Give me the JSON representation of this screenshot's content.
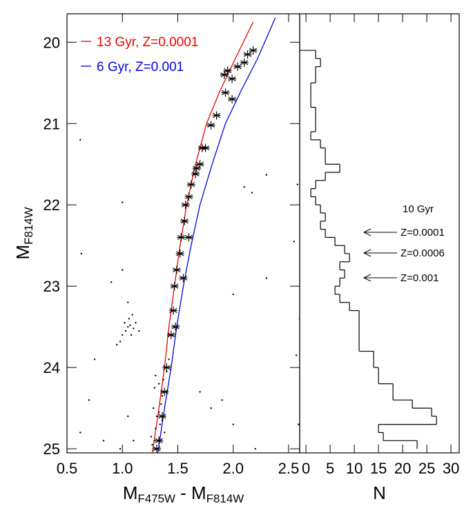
{
  "chart_data": [
    {
      "type": "scatter",
      "x_label": [
        {
          "text": "M"
        },
        {
          "sub": "F475W"
        },
        {
          "text": " - M"
        },
        {
          "sub": "F814W"
        }
      ],
      "y_label": [
        {
          "text": "M"
        },
        {
          "sub": "F814W"
        }
      ],
      "xlim": [
        0.5,
        2.6
      ],
      "ylim": [
        19.65,
        25.05
      ],
      "y_inverted": true,
      "xticks": [
        0.5,
        {
          "value": 1,
          "label": "1.0"
        },
        1.5,
        {
          "value": 2,
          "label": "2.0"
        },
        2.5
      ],
      "yticks": [
        20,
        21,
        22,
        23,
        24,
        25
      ],
      "legend": "upper left",
      "series": [
        {
          "name": "13 Gyr, Z=0.0001",
          "color": "#ee0000",
          "marker": "line",
          "x": [
            1.27,
            1.33,
            1.38,
            1.42,
            1.47,
            1.52,
            1.58,
            1.66,
            1.76,
            1.88,
            2.02,
            2.18
          ],
          "values": [
            25.05,
            24.5,
            24.0,
            23.5,
            23.0,
            22.5,
            22.0,
            21.5,
            21.0,
            20.6,
            20.2,
            19.75
          ]
        },
        {
          "name": "6 Gyr, Z=0.001",
          "color": "#0000dd",
          "marker": "line",
          "x": [
            1.32,
            1.38,
            1.44,
            1.49,
            1.55,
            1.62,
            1.7,
            1.81,
            1.93,
            2.07,
            2.22,
            2.38
          ],
          "values": [
            25.05,
            24.5,
            24.0,
            23.5,
            23.0,
            22.5,
            22.0,
            21.5,
            21.0,
            20.6,
            20.2,
            19.7
          ]
        },
        {
          "color": "#000000",
          "marker": "asterisk",
          "x": [
            2.18,
            2.13,
            2.1,
            2.04,
            1.95,
            1.92,
            1.99,
            1.93,
            1.99,
            1.85,
            1.8,
            1.72,
            1.75,
            1.7,
            1.67,
            1.66,
            1.62,
            1.6,
            1.57,
            1.56,
            1.53,
            1.52,
            1.49,
            1.47,
            1.46,
            1.44,
            1.4,
            1.38,
            1.36,
            1.33,
            1.31,
            1.6,
            1.55,
            1.48
          ],
          "values": [
            20.1,
            20.15,
            20.25,
            20.3,
            20.35,
            20.4,
            20.45,
            20.62,
            20.7,
            20.9,
            21.02,
            21.3,
            21.3,
            21.5,
            21.55,
            21.62,
            21.75,
            21.9,
            22.0,
            22.2,
            22.4,
            22.6,
            22.8,
            23.0,
            23.3,
            23.6,
            24.0,
            24.3,
            24.6,
            24.9,
            25.0,
            22.4,
            22.9,
            23.5
          ]
        },
        {
          "color": "#000000",
          "marker": "dot",
          "x": [
            0.62,
            1.0,
            0.63,
            2.58,
            2.3,
            2.1,
            2.17,
            2.3,
            2.0,
            2.55,
            2.6,
            2.57,
            0.75,
            1.05,
            0.9,
            1.0,
            0.7,
            0.83,
            0.62,
            2.59,
            2.0,
            1.8,
            1.9,
            1.05,
            1.1,
            0.98,
            1.7,
            2.2,
            1.0,
            1.03,
            1.05,
            1.07,
            1.1,
            1.12,
            1.08,
            0.98,
            1.02,
            1.06,
            1.15,
            0.95,
            1.09,
            1.3,
            1.33,
            1.36,
            1.28,
            1.31,
            1.34,
            1.38,
            1.29,
            1.32,
            1.35,
            1.3,
            1.27,
            1.37,
            1.4,
            1.26,
            1.33,
            1.36,
            1.42,
            1.29
          ],
          "values": [
            21.2,
            21.97,
            22.6,
            21.75,
            21.63,
            21.78,
            21.85,
            22.9,
            23.1,
            22.45,
            23.4,
            23.85,
            23.9,
            23.2,
            22.95,
            22.8,
            24.4,
            24.9,
            24.8,
            24.7,
            24.7,
            24.5,
            24.4,
            24.6,
            24.9,
            25.0,
            24.3,
            25.0,
            23.6,
            23.55,
            23.5,
            23.48,
            23.52,
            23.45,
            23.6,
            23.68,
            23.45,
            23.4,
            23.55,
            23.72,
            23.35,
            24.1,
            24.2,
            24.35,
            24.5,
            24.6,
            24.7,
            24.8,
            24.9,
            25.0,
            24.45,
            24.75,
            24.95,
            24.15,
            24.05,
            24.85,
            24.55,
            24.65,
            23.9,
            24.25
          ]
        }
      ]
    },
    {
      "type": "histogram",
      "x_label": "N",
      "xlim": [
        -1.3,
        31.7
      ],
      "ylim": [
        19.65,
        25.05
      ],
      "y_inverted": true,
      "xticks": [
        0,
        5,
        10,
        15,
        20,
        25,
        30
      ],
      "color": "#000000",
      "bins": [
        20.1,
        20.2,
        20.3,
        20.4,
        20.5,
        20.6,
        20.7,
        20.8,
        20.9,
        21.0,
        21.1,
        21.2,
        21.3,
        21.4,
        21.5,
        21.6,
        21.7,
        21.8,
        21.9,
        22.0,
        22.1,
        22.2,
        22.3,
        22.4,
        22.5,
        22.6,
        22.7,
        22.8,
        22.9,
        23.0,
        23.1,
        23.2,
        23.3,
        23.4,
        23.5,
        23.6,
        23.7,
        23.8,
        23.9,
        24.0,
        24.1,
        24.2,
        24.3,
        24.4,
        24.5,
        24.6,
        24.7,
        24.8,
        24.9,
        25.0
      ],
      "values": [
        2,
        3,
        2,
        2,
        1,
        1,
        1,
        2,
        2,
        2,
        1,
        3,
        4,
        4,
        7,
        4,
        2,
        1,
        2,
        3,
        4,
        3,
        4,
        6,
        8,
        9,
        7,
        8,
        7,
        6,
        7,
        9,
        11,
        11,
        11,
        11,
        11,
        14,
        14,
        15,
        15,
        18,
        18,
        22,
        26,
        27,
        15,
        16,
        23
      ],
      "annotations": [
        "10 Gyr",
        "Z=0.0001",
        "Z=0.0006",
        "Z=0.001"
      ]
    }
  ]
}
